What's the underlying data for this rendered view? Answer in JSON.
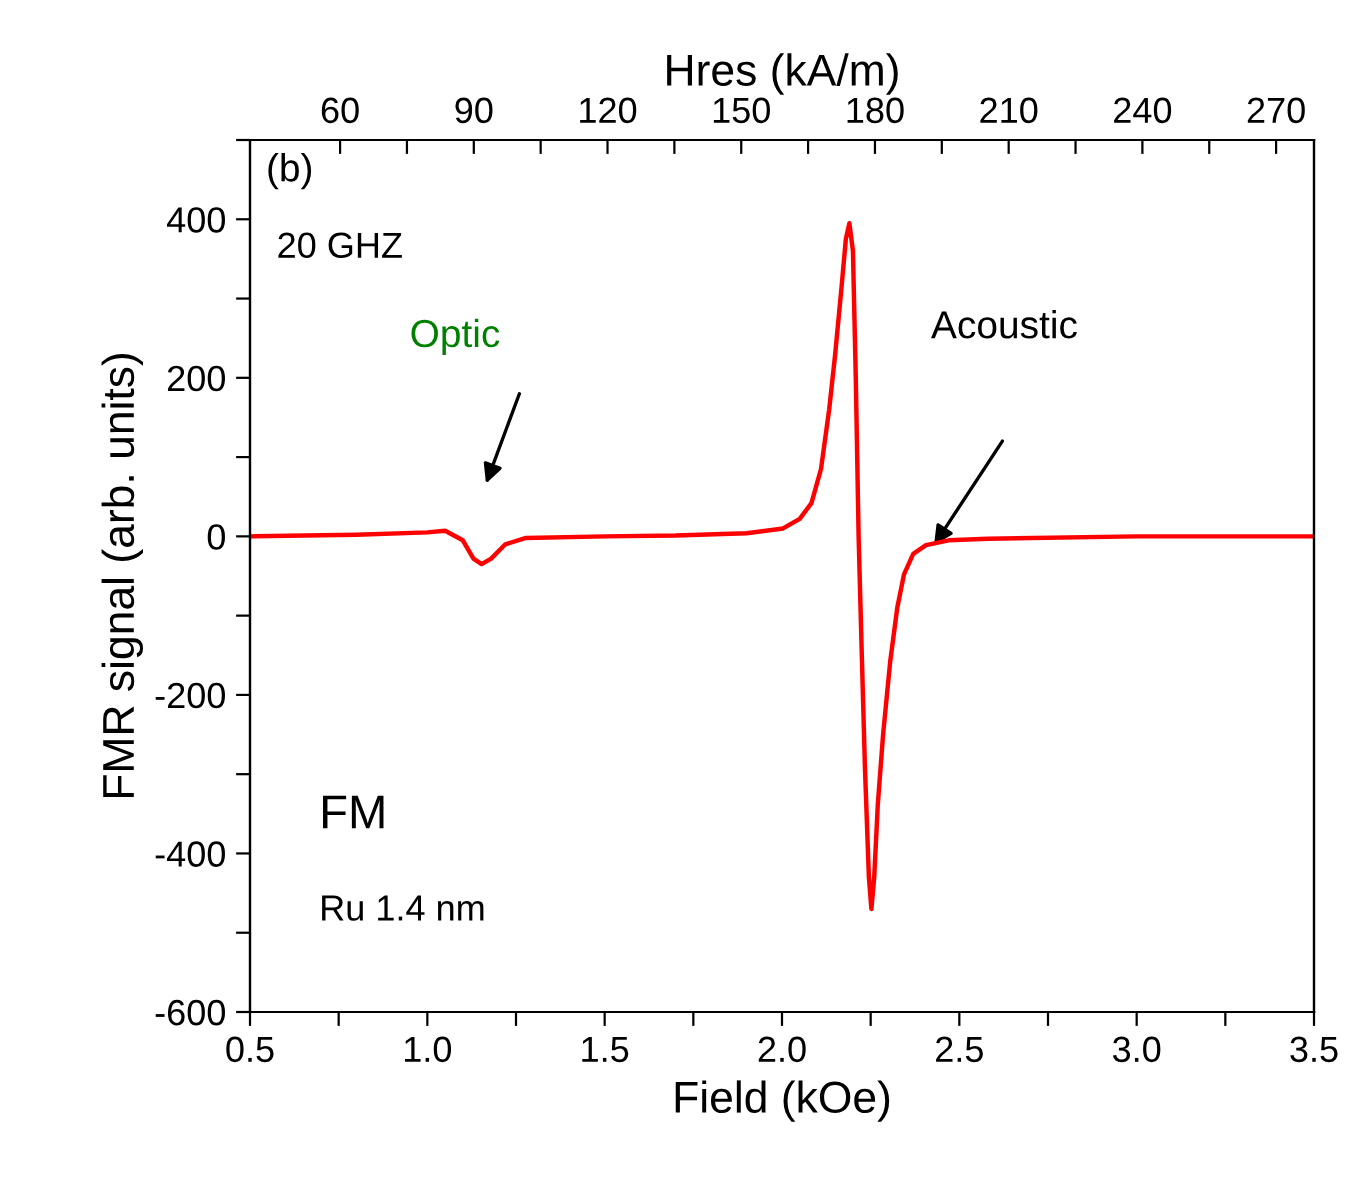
{
  "chart_data": {
    "type": "line",
    "xlabel": "Field (kOe)",
    "ylabel": "FMR signal (arb. units)",
    "x2label": "Hres (kA/m)",
    "x": [
      0.5,
      0.8,
      1.0,
      1.05,
      1.1,
      1.13,
      1.153,
      1.18,
      1.22,
      1.278,
      1.5,
      1.7,
      1.9,
      2.003,
      2.05,
      2.083,
      2.11,
      2.133,
      2.15,
      2.168,
      2.18,
      2.19,
      2.2,
      2.208,
      2.216,
      2.225,
      2.234,
      2.245,
      2.252,
      2.26,
      2.27,
      2.285,
      2.305,
      2.325,
      2.344,
      2.37,
      2.406,
      2.47,
      2.58,
      3.0,
      3.5
    ],
    "series": [
      {
        "color": "#ff0000",
        "values": [
          0,
          2,
          5,
          7,
          -5,
          -28,
          -35,
          -28,
          -10,
          -2,
          0,
          1,
          4,
          10,
          22,
          42,
          85,
          160,
          230,
          315,
          375,
          395,
          360,
          200,
          0,
          -150,
          -294,
          -430,
          -470,
          -430,
          -339,
          -250,
          -158,
          -90,
          -48,
          -22,
          -11,
          -5,
          -3,
          0,
          0
        ]
      }
    ],
    "xlim": [
      0.5,
      3.5
    ],
    "xticks": [
      0.5,
      {
        "value": 0.75,
        "label": null
      },
      {
        "value": 1,
        "label": "1.0"
      },
      {
        "value": 1.25,
        "label": null
      },
      1.5,
      {
        "value": 1.75,
        "label": null
      },
      {
        "value": 2,
        "label": "2.0"
      },
      {
        "value": 2.25,
        "label": null
      },
      2.5,
      {
        "value": 2.75,
        "label": null
      },
      {
        "value": 3,
        "label": "3.0"
      },
      {
        "value": 3.25,
        "label": null
      },
      3.5
    ],
    "ylim": [
      -600,
      500
    ],
    "yticks": [
      -600,
      {
        "value": -500,
        "label": null
      },
      -400,
      {
        "value": -300,
        "label": null
      },
      -200,
      {
        "value": -100,
        "label": null
      },
      0,
      {
        "value": 100,
        "label": null
      },
      200,
      {
        "value": 300,
        "label": null
      },
      400,
      {
        "value": 500,
        "label": null
      }
    ],
    "x2lim": [
      39.79,
      278.5
    ],
    "x2ticks": [
      60,
      {
        "value": 75,
        "label": null
      },
      90,
      {
        "value": 105,
        "label": null
      },
      120,
      {
        "value": 135,
        "label": null
      },
      150,
      {
        "value": 165,
        "label": null
      },
      180,
      {
        "value": 195,
        "label": null
      },
      210,
      {
        "value": 225,
        "label": null
      },
      240,
      {
        "value": 255,
        "label": null
      },
      270
    ],
    "marker": "none",
    "line_style": "solid",
    "grid": false,
    "legend": false,
    "annotations": [
      "(b)",
      "20 GHZ",
      "Optic",
      "Acoustic",
      "FM",
      "Ru 1.4 nm"
    ]
  }
}
